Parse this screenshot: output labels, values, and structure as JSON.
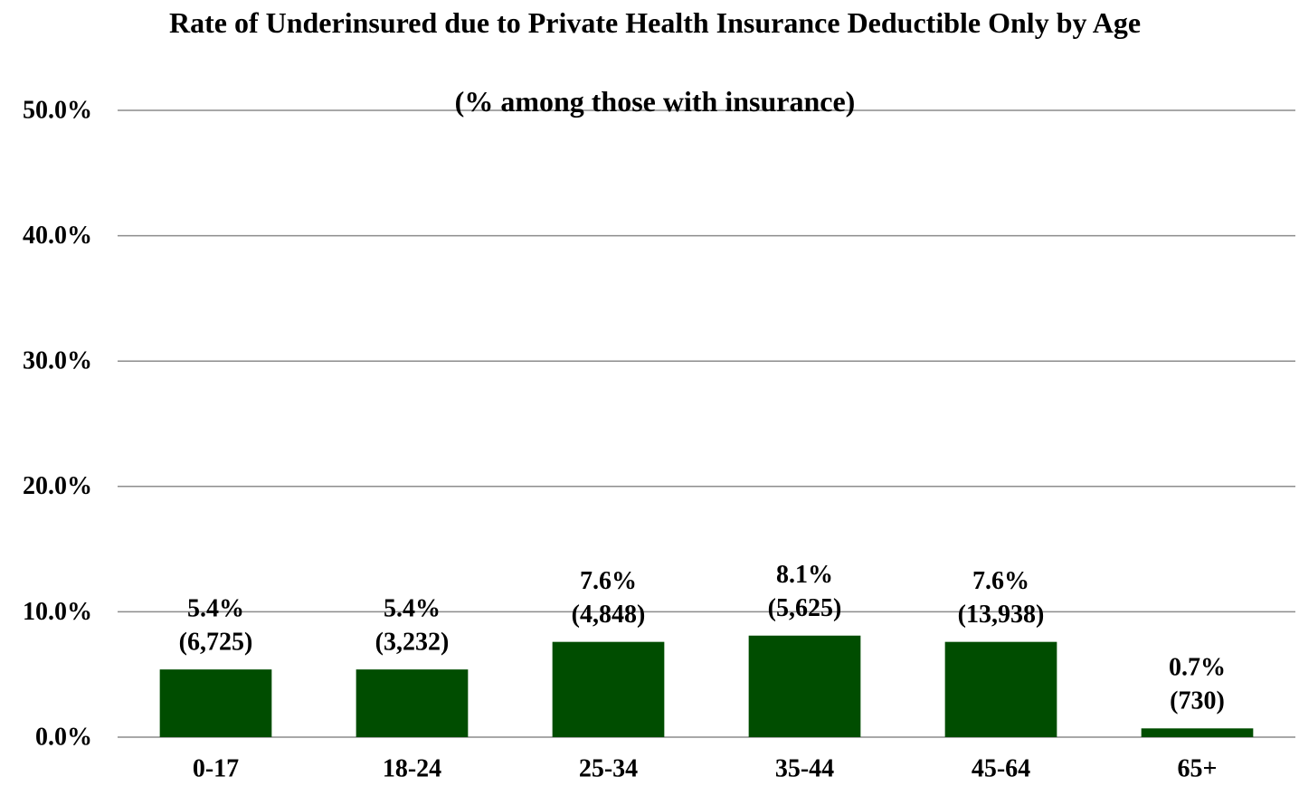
{
  "chart_data": {
    "type": "bar",
    "title": "Rate of Underinsured due to Private Health Insurance Deductible Only by Age",
    "subtitle": "(% among those with insurance)",
    "categories": [
      "0-17",
      "18-24",
      "25-34",
      "35-44",
      "45-64",
      "65+"
    ],
    "values": [
      5.4,
      5.4,
      7.6,
      8.1,
      7.6,
      0.7
    ],
    "value_labels": [
      "5.4%",
      "5.4%",
      "7.6%",
      "8.1%",
      "7.6%",
      "0.7%"
    ],
    "count_labels": [
      "(6,725)",
      "(3,232)",
      "(4,848)",
      "(5,625)",
      "(13,938)",
      "(730)"
    ],
    "color": "#004d00",
    "ylim": [
      0,
      50
    ],
    "yticks": [
      {
        "value": 0,
        "label": "0.0%"
      },
      {
        "value": 10,
        "label": "10.0%"
      },
      {
        "value": 20,
        "label": "20.0%"
      },
      {
        "value": 30,
        "label": "30.0%"
      },
      {
        "value": 40,
        "label": "40.0%"
      },
      {
        "value": 50,
        "label": "50.0%"
      }
    ],
    "grid": true
  }
}
